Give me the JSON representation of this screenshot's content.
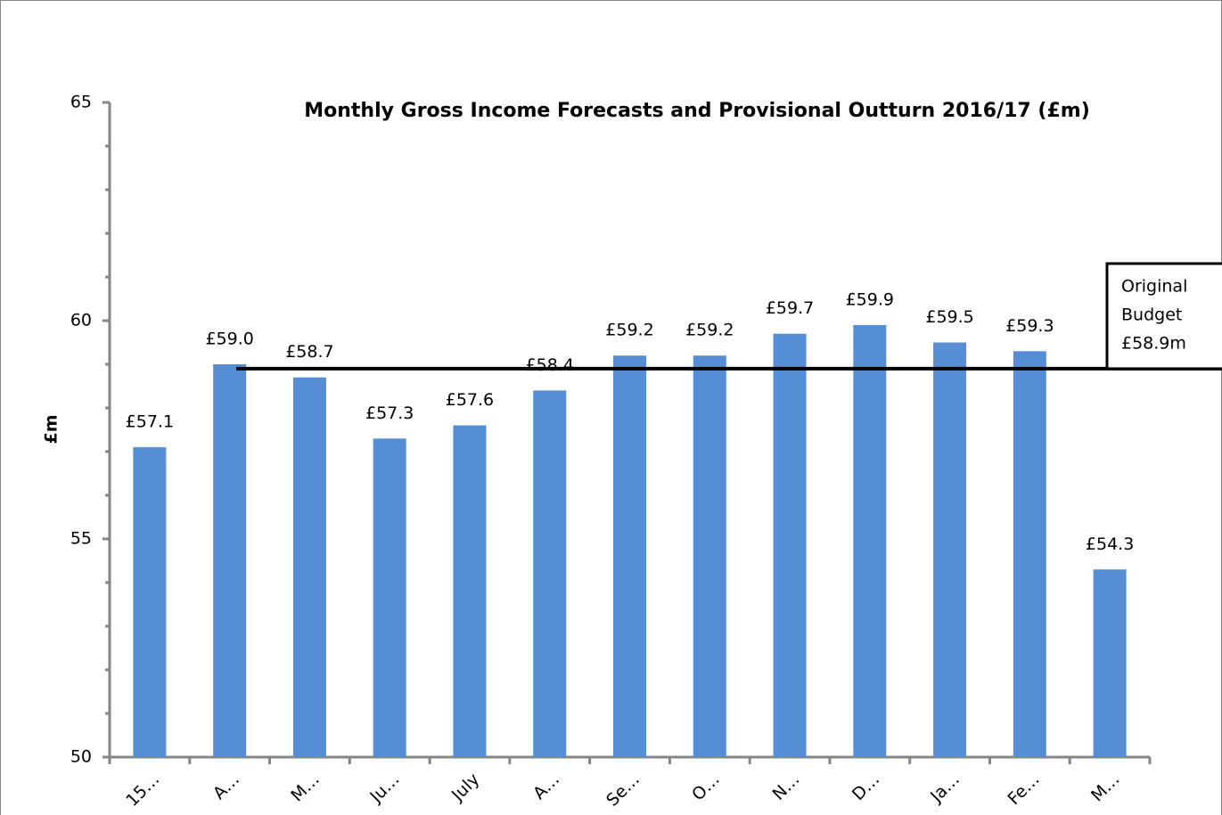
{
  "chart_data": {
    "type": "bar",
    "title": "Monthly Gross Income Forecasts and Provisional Outturn 2016/17 (£m)",
    "y_label": "£m",
    "categories": [
      "15…",
      "A…",
      "M…",
      "Ju…",
      "July",
      "A…",
      "Se…",
      "O…",
      "N…",
      "D…",
      "Ja…",
      "Fe…",
      "M…"
    ],
    "values": [
      57.1,
      59.0,
      58.7,
      57.3,
      57.6,
      58.4,
      59.2,
      59.2,
      59.7,
      59.9,
      59.5,
      59.3,
      54.3
    ],
    "value_labels": [
      "£57.1",
      "£59.0",
      "£58.7",
      "£57.3",
      "£57.6",
      "£58.4",
      "£59.2",
      "£59.2",
      "£59.7",
      "£59.9",
      "£59.5",
      "£59.3",
      "£54.3"
    ],
    "color": "#558ed5",
    "ylim": [
      50,
      65
    ],
    "yticks": [
      50,
      55,
      60,
      65
    ],
    "yticks_minor": [
      51,
      52,
      53,
      54,
      56,
      57,
      58,
      59,
      61,
      62,
      63,
      64
    ],
    "budget": {
      "value": 58.9,
      "label_lines": [
        "Original",
        "Budget",
        "£58.9m"
      ]
    },
    "grid": false
  }
}
